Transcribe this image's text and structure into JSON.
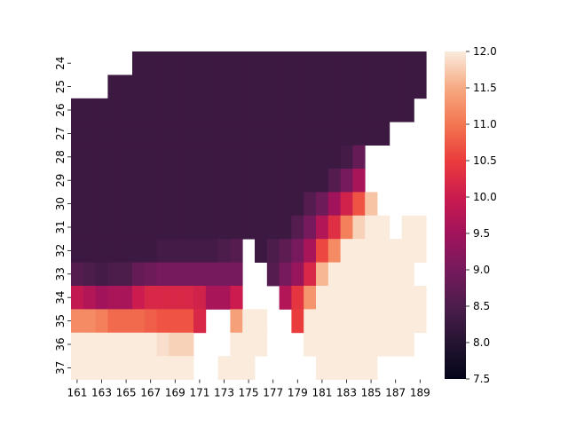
{
  "chart_data": {
    "type": "heatmap",
    "title": "",
    "xlabel": "",
    "ylabel": "",
    "x": [
      161,
      162,
      163,
      164,
      165,
      166,
      167,
      168,
      169,
      170,
      171,
      172,
      173,
      174,
      175,
      176,
      177,
      178,
      179,
      180,
      181,
      182,
      183,
      184,
      185,
      186,
      187,
      188,
      189
    ],
    "y": [
      24,
      25,
      26,
      27,
      28,
      29,
      30,
      31,
      32,
      33,
      34,
      35,
      36,
      37
    ],
    "x_tick_labels": [
      "161",
      "163",
      "165",
      "167",
      "169",
      "171",
      "173",
      "175",
      "177",
      "179",
      "181",
      "183",
      "185",
      "187",
      "189"
    ],
    "y_tick_labels": [
      "24",
      "25",
      "26",
      "27",
      "28",
      "29",
      "30",
      "31",
      "32",
      "33",
      "34",
      "35",
      "36",
      "37"
    ],
    "colorbar": {
      "vmin": 7.5,
      "vmax": 12.0,
      "ticks": [
        7.5,
        8.0,
        8.5,
        9.0,
        9.5,
        10.0,
        10.5,
        11.0,
        11.5,
        12.0
      ],
      "tick_labels": [
        "7.5",
        "8.0",
        "8.5",
        "9.0",
        "9.5",
        "10.0",
        "10.5",
        "11.0",
        "11.5",
        "12.0"
      ],
      "colormap": "rocket"
    },
    "values": [
      [
        null,
        null,
        null,
        null,
        null,
        8.3,
        8.3,
        8.3,
        8.3,
        8.3,
        8.3,
        8.3,
        8.3,
        8.3,
        8.3,
        8.3,
        8.3,
        8.3,
        8.3,
        8.3,
        8.3,
        8.3,
        8.3,
        8.3,
        8.3,
        8.3,
        8.3,
        8.3,
        8.3
      ],
      [
        null,
        null,
        null,
        8.3,
        8.3,
        8.3,
        8.3,
        8.3,
        8.3,
        8.3,
        8.3,
        8.3,
        8.3,
        8.3,
        8.3,
        8.3,
        8.3,
        8.3,
        8.3,
        8.3,
        8.3,
        8.3,
        8.3,
        8.3,
        8.3,
        8.3,
        8.3,
        8.3,
        8.3
      ],
      [
        8.3,
        8.3,
        8.3,
        8.3,
        8.3,
        8.3,
        8.3,
        8.3,
        8.3,
        8.3,
        8.3,
        8.3,
        8.3,
        8.3,
        8.3,
        8.3,
        8.3,
        8.3,
        8.3,
        8.3,
        8.3,
        8.3,
        8.3,
        8.3,
        8.3,
        8.3,
        8.3,
        8.3,
        null
      ],
      [
        8.3,
        8.3,
        8.3,
        8.3,
        8.3,
        8.3,
        8.3,
        8.3,
        8.3,
        8.3,
        8.3,
        8.3,
        8.3,
        8.3,
        8.3,
        8.3,
        8.3,
        8.3,
        8.3,
        8.3,
        8.3,
        8.3,
        8.3,
        8.3,
        8.3,
        8.3,
        null,
        null,
        null
      ],
      [
        8.3,
        8.3,
        8.3,
        8.3,
        8.3,
        8.3,
        8.3,
        8.3,
        8.3,
        8.3,
        8.3,
        8.3,
        8.3,
        8.3,
        8.3,
        8.3,
        8.3,
        8.3,
        8.3,
        8.3,
        8.3,
        8.3,
        8.4,
        8.8,
        null,
        null,
        null,
        null,
        null
      ],
      [
        8.3,
        8.3,
        8.3,
        8.3,
        8.3,
        8.3,
        8.3,
        8.3,
        8.3,
        8.3,
        8.3,
        8.3,
        8.3,
        8.3,
        8.3,
        8.3,
        8.3,
        8.3,
        8.3,
        8.3,
        8.3,
        8.6,
        9.0,
        9.6,
        null,
        null,
        null,
        null,
        null
      ],
      [
        8.3,
        8.3,
        8.3,
        8.3,
        8.3,
        8.3,
        8.3,
        8.3,
        8.3,
        8.3,
        8.3,
        8.3,
        8.3,
        8.3,
        8.3,
        8.3,
        8.3,
        8.3,
        8.3,
        8.6,
        8.9,
        9.5,
        10.1,
        10.7,
        11.7,
        null,
        null,
        null,
        null
      ],
      [
        8.3,
        8.3,
        8.3,
        8.3,
        8.3,
        8.3,
        8.3,
        8.3,
        8.3,
        8.3,
        8.3,
        8.3,
        8.3,
        8.3,
        8.3,
        8.3,
        8.3,
        8.3,
        8.6,
        9.0,
        9.7,
        10.3,
        11.1,
        11.8,
        12.0,
        12.0,
        null,
        12.0,
        12.0
      ],
      [
        8.3,
        8.3,
        8.3,
        8.3,
        8.3,
        8.3,
        8.3,
        8.4,
        8.4,
        8.4,
        8.4,
        8.4,
        8.5,
        8.6,
        null,
        8.3,
        8.5,
        8.7,
        9.0,
        9.6,
        10.6,
        11.2,
        12.0,
        12.0,
        12.0,
        12.0,
        12.0,
        12.0,
        12.0
      ],
      [
        8.6,
        8.5,
        8.4,
        8.5,
        8.5,
        8.8,
        8.9,
        9.0,
        9.0,
        9.0,
        9.0,
        9.0,
        9.0,
        9.0,
        null,
        null,
        8.6,
        9.0,
        9.4,
        10.2,
        11.6,
        12.0,
        12.0,
        12.0,
        12.0,
        12.0,
        12.0,
        12.0,
        null
      ],
      [
        9.9,
        9.7,
        9.5,
        9.6,
        9.6,
        10.0,
        10.2,
        10.2,
        10.2,
        10.2,
        10.1,
        9.6,
        9.6,
        10.0,
        null,
        null,
        null,
        9.7,
        10.4,
        11.3,
        12.0,
        12.0,
        12.0,
        12.0,
        12.0,
        12.0,
        12.0,
        12.0,
        12.0
      ],
      [
        11.2,
        11.2,
        11.1,
        10.9,
        10.9,
        10.9,
        10.8,
        10.7,
        10.7,
        10.7,
        10.2,
        null,
        null,
        11.4,
        12.0,
        12.0,
        null,
        null,
        10.5,
        12.0,
        12.0,
        12.0,
        12.0,
        12.0,
        12.0,
        12.0,
        12.0,
        12.0,
        12.0
      ],
      [
        12.0,
        12.0,
        12.0,
        12.0,
        12.0,
        12.0,
        12.0,
        11.9,
        11.8,
        11.8,
        null,
        null,
        null,
        12.0,
        12.0,
        12.0,
        null,
        null,
        null,
        12.0,
        12.0,
        12.0,
        12.0,
        12.0,
        12.0,
        12.0,
        12.0,
        12.0,
        null
      ],
      [
        12.0,
        12.0,
        12.0,
        12.0,
        12.0,
        12.0,
        12.0,
        12.0,
        12.0,
        12.0,
        null,
        null,
        12.0,
        12.0,
        12.0,
        null,
        null,
        null,
        null,
        null,
        12.0,
        12.0,
        12.0,
        12.0,
        12.0,
        null,
        null,
        null,
        null
      ]
    ]
  }
}
